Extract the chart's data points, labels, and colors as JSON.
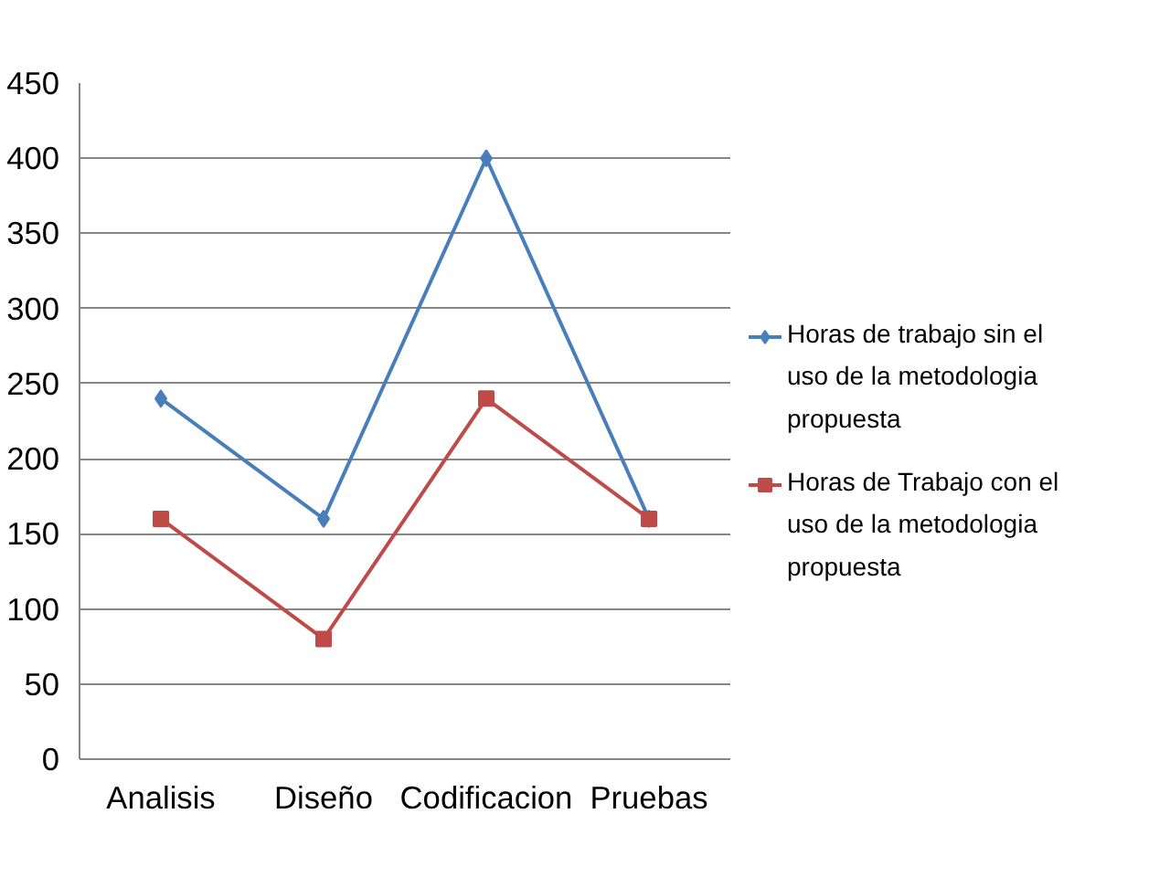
{
  "chart_data": {
    "type": "line",
    "categories": [
      "Analisis",
      "Diseño",
      "Codificacion",
      "Pruebas"
    ],
    "series": [
      {
        "name": "Horas de trabajo sin el uso de la metodologia propuesta",
        "color": "#4a7ebb",
        "values": [
          240,
          160,
          400,
          160
        ],
        "marker": "diamond"
      },
      {
        "name": "Horas de Trabajo con el uso de la metodologia propuesta",
        "color": "#be4b48",
        "values": [
          160,
          80,
          240,
          160
        ],
        "marker": "square"
      }
    ],
    "ylim": [
      0,
      450
    ],
    "yticks": [
      0,
      50,
      100,
      150,
      200,
      250,
      300,
      350,
      400,
      450
    ],
    "grid": "y",
    "legend": "right",
    "line_style": "solid"
  }
}
